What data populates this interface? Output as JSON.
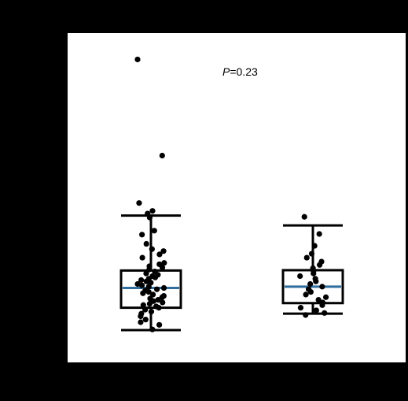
{
  "page": {
    "background": "#000000",
    "panel_background": "#ffffff"
  },
  "annotation": {
    "p_label": "P",
    "p_value": "=0.23"
  },
  "colors": {
    "box": "#000000",
    "median": "#2f6e9e",
    "points": "#000000"
  },
  "chart_data": {
    "type": "box",
    "title": "",
    "xlabel": "",
    "ylabel": "",
    "grid": false,
    "legend": "none",
    "ylim": [
      0,
      1
    ],
    "groups": [
      {
        "q1": 0.166,
        "median": 0.226,
        "q3": 0.279,
        "whisker_low": 0.098,
        "whisker_high": 0.446,
        "points": [
          0.92,
          0.628,
          0.484,
          0.46,
          0.452,
          0.44,
          0.4,
          0.388,
          0.36,
          0.344,
          0.338,
          0.328,
          0.318,
          0.302,
          0.298,
          0.292,
          0.288,
          0.282,
          0.276,
          0.27,
          0.266,
          0.262,
          0.258,
          0.254,
          0.25,
          0.246,
          0.242,
          0.238,
          0.234,
          0.23,
          0.226,
          0.222,
          0.218,
          0.214,
          0.21,
          0.206,
          0.202,
          0.198,
          0.194,
          0.19,
          0.186,
          0.182,
          0.178,
          0.174,
          0.17,
          0.166,
          0.16,
          0.154,
          0.148,
          0.14,
          0.13,
          0.122,
          0.114,
          0.1
        ]
      },
      {
        "q1": 0.18,
        "median": 0.23,
        "q3": 0.28,
        "whisker_low": 0.148,
        "whisker_high": 0.416,
        "points": [
          0.442,
          0.39,
          0.354,
          0.33,
          0.318,
          0.306,
          0.296,
          0.286,
          0.278,
          0.27,
          0.262,
          0.254,
          0.246,
          0.238,
          0.23,
          0.222,
          0.214,
          0.206,
          0.198,
          0.19,
          0.182,
          0.174,
          0.166,
          0.158,
          0.15,
          0.144
        ]
      }
    ]
  }
}
